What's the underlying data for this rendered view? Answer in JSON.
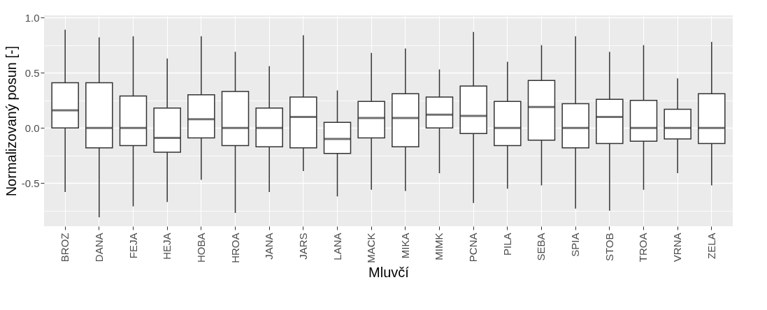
{
  "chart_data": {
    "type": "box",
    "xlabel": "Mluvčí",
    "ylabel": "Normalizovaný posun [-]",
    "categories": [
      "BROZ",
      "DANA",
      "FEJA",
      "HEJA",
      "HOBA",
      "HROA",
      "JANA",
      "JARS",
      "LANA",
      "MACK",
      "MIKA",
      "MIMK",
      "PCNA",
      "PILA",
      "SEBA",
      "SPIA",
      "STOB",
      "TROA",
      "VRNA",
      "ZELA"
    ],
    "boxes": [
      {
        "low": -0.58,
        "q1": 0.0,
        "median": 0.16,
        "q3": 0.41,
        "high": 0.89
      },
      {
        "low": -0.81,
        "q1": -0.18,
        "median": 0.0,
        "q3": 0.41,
        "high": 0.82
      },
      {
        "low": -0.71,
        "q1": -0.16,
        "median": 0.0,
        "q3": 0.29,
        "high": 0.83
      },
      {
        "low": -0.67,
        "q1": -0.22,
        "median": -0.09,
        "q3": 0.18,
        "high": 0.63
      },
      {
        "low": -0.47,
        "q1": -0.09,
        "median": 0.08,
        "q3": 0.3,
        "high": 0.83
      },
      {
        "low": -0.77,
        "q1": -0.16,
        "median": 0.0,
        "q3": 0.33,
        "high": 0.69
      },
      {
        "low": -0.58,
        "q1": -0.17,
        "median": 0.0,
        "q3": 0.18,
        "high": 0.56
      },
      {
        "low": -0.39,
        "q1": -0.18,
        "median": 0.1,
        "q3": 0.28,
        "high": 0.84
      },
      {
        "low": -0.62,
        "q1": -0.23,
        "median": -0.1,
        "q3": 0.05,
        "high": 0.34
      },
      {
        "low": -0.56,
        "q1": -0.09,
        "median": 0.09,
        "q3": 0.24,
        "high": 0.68
      },
      {
        "low": -0.57,
        "q1": -0.17,
        "median": 0.09,
        "q3": 0.31,
        "high": 0.72
      },
      {
        "low": -0.41,
        "q1": 0.0,
        "median": 0.12,
        "q3": 0.28,
        "high": 0.53
      },
      {
        "low": -0.68,
        "q1": -0.05,
        "median": 0.11,
        "q3": 0.38,
        "high": 0.87
      },
      {
        "low": -0.55,
        "q1": -0.16,
        "median": 0.0,
        "q3": 0.24,
        "high": 0.6
      },
      {
        "low": -0.52,
        "q1": -0.11,
        "median": 0.19,
        "q3": 0.43,
        "high": 0.75
      },
      {
        "low": -0.73,
        "q1": -0.18,
        "median": 0.0,
        "q3": 0.22,
        "high": 0.83
      },
      {
        "low": -0.75,
        "q1": -0.14,
        "median": 0.1,
        "q3": 0.26,
        "high": 0.69
      },
      {
        "low": -0.56,
        "q1": -0.12,
        "median": 0.0,
        "q3": 0.25,
        "high": 0.75
      },
      {
        "low": -0.41,
        "q1": -0.1,
        "median": 0.0,
        "q3": 0.17,
        "high": 0.45
      },
      {
        "low": -0.52,
        "q1": -0.14,
        "median": 0.0,
        "q3": 0.31,
        "high": 0.78
      }
    ],
    "ylim": [
      -0.89,
      1.02
    ],
    "yticks": [
      {
        "value": -0.75,
        "label": null
      },
      -0.5,
      {
        "value": -0.25,
        "label": null
      },
      {
        "value": 0,
        "label": "0.0"
      },
      {
        "value": 0.25,
        "label": null
      },
      0.5,
      {
        "value": 0.75,
        "label": null
      },
      {
        "value": 1,
        "label": "1.0"
      }
    ],
    "grid": true
  }
}
